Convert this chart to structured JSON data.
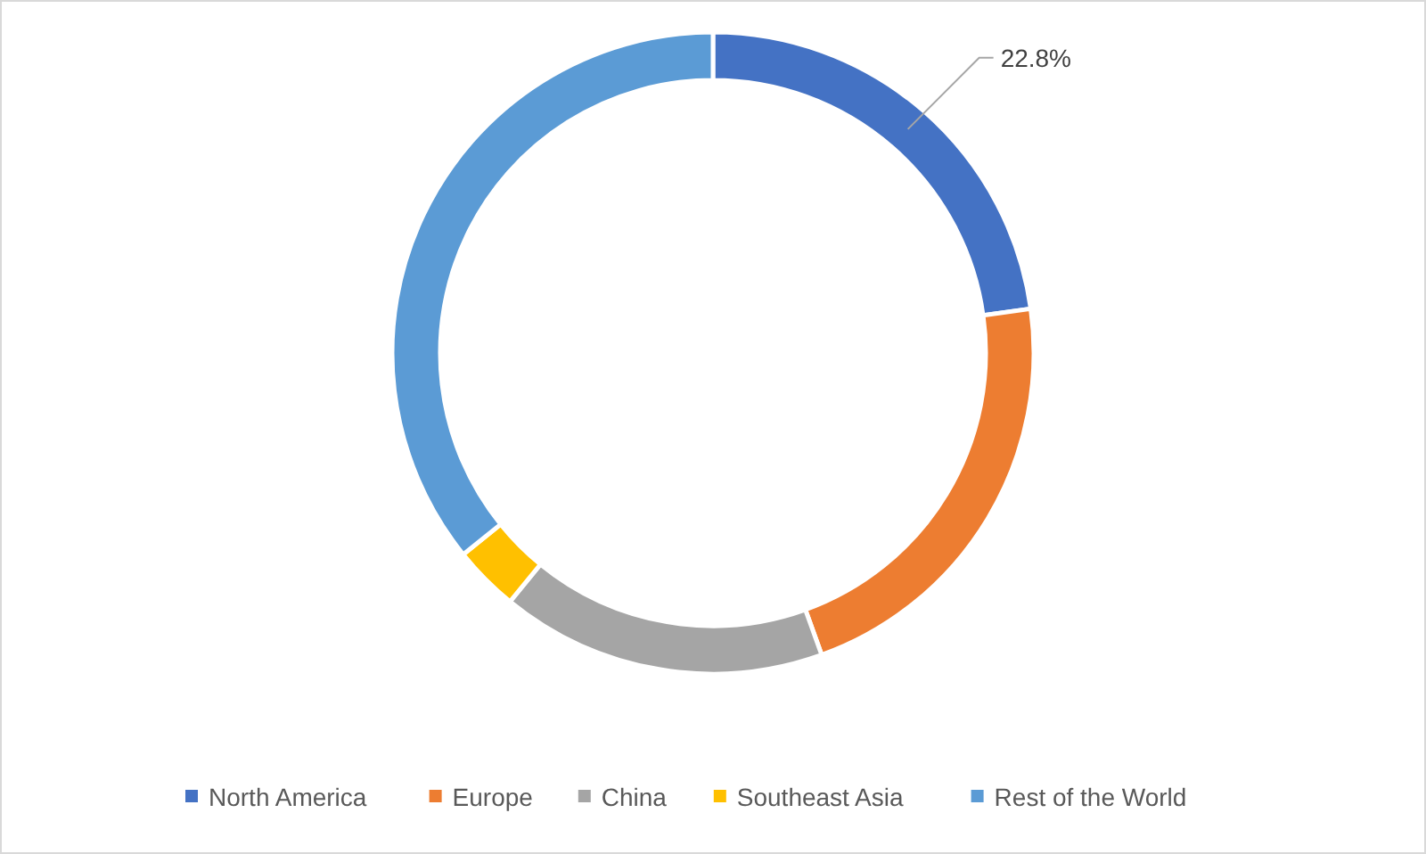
{
  "chart_data": {
    "type": "donut",
    "categories": [
      "North America",
      "Europe",
      "China",
      "Southeast Asia",
      "Rest of the World"
    ],
    "values": [
      22.8,
      21.7,
      16.4,
      3.3,
      35.8
    ],
    "colors": [
      "#4472c4",
      "#ed7d31",
      "#a5a5a5",
      "#ffc000",
      "#5b9bd5"
    ],
    "value_labels": [
      "22.8%",
      null,
      null,
      null,
      null
    ],
    "legend": "bottom"
  }
}
